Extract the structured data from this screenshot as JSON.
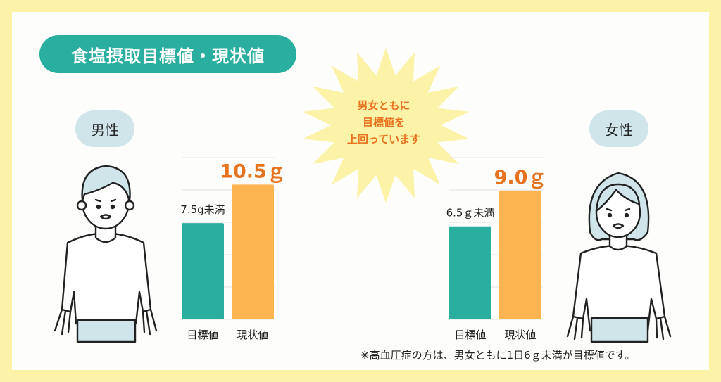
{
  "title": "食塩摂取目標値・現状値",
  "male_label": "男性",
  "female_label": "女性",
  "burst_text": [
    "男女ともに",
    "目標値を",
    "上回っています"
  ],
  "note": "※高血圧症の方は、男女ともに1日6ｇ未満が目標値です。",
  "colors": {
    "target": "#2aaea0",
    "current": "#fbb450",
    "highlight": "#e8731f",
    "background": "#fdf3a8",
    "burst": "#fdf3a8"
  },
  "chart_data": [
    {
      "type": "bar",
      "group": "男性",
      "categories": [
        "目標値",
        "現状値"
      ],
      "values": [
        7.5,
        10.5
      ],
      "value_labels": [
        "7.5g未満",
        "10.5ｇ"
      ],
      "ylim": [
        0,
        12.6
      ],
      "grid": true
    },
    {
      "type": "bar",
      "group": "女性",
      "categories": [
        "目標値",
        "現状値"
      ],
      "values": [
        6.5,
        9.0
      ],
      "value_labels": [
        "6.5ｇ未満",
        "9.0ｇ"
      ],
      "ylim": [
        0,
        11.3
      ],
      "grid": true
    }
  ]
}
